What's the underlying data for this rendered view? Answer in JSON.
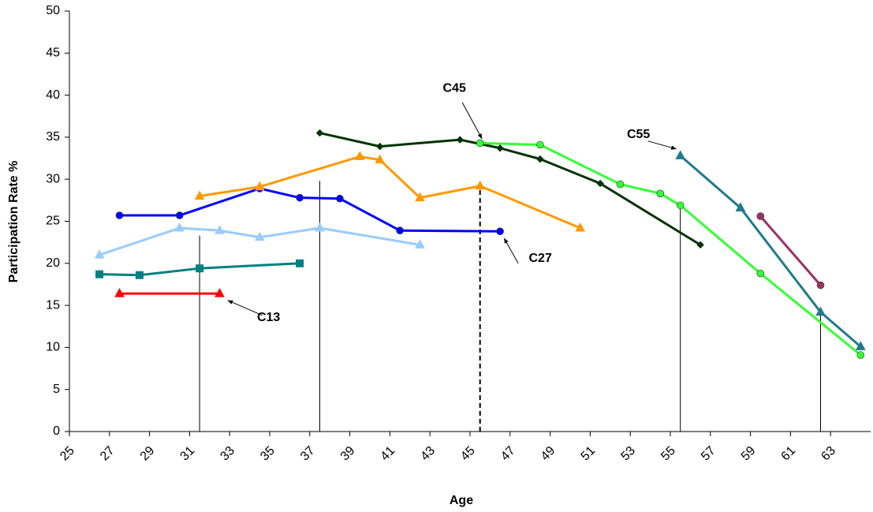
{
  "chart_data": {
    "type": "line",
    "x_label": "Age",
    "y_label": "Participation Rate %",
    "xlim": [
      25,
      65
    ],
    "ylim": [
      0,
      50
    ],
    "xticks": [
      25,
      27,
      29,
      31,
      33,
      35,
      37,
      39,
      41,
      43,
      45,
      47,
      49,
      51,
      53,
      55,
      57,
      59,
      61,
      63
    ],
    "yticks": [
      0,
      5,
      10,
      15,
      20,
      25,
      30,
      35,
      40,
      45,
      50
    ],
    "series": [
      {
        "color": "#ff0000",
        "marker": "triangle",
        "x": [
          27.5,
          32.5
        ],
        "values": [
          16.4,
          16.4
        ]
      },
      {
        "color": "#008080",
        "marker": "square",
        "x": [
          26.5,
          28.5,
          31.5,
          36.5
        ],
        "values": [
          18.7,
          18.6,
          19.4,
          20.0
        ]
      },
      {
        "color": "#99ccff",
        "marker": "triangle",
        "x": [
          26.5,
          30.5,
          32.5,
          34.5,
          37.5,
          42.5
        ],
        "values": [
          21.0,
          24.2,
          23.9,
          23.1,
          24.2,
          22.2
        ]
      },
      {
        "color": "#0000ff",
        "marker": "circle",
        "x": [
          27.5,
          30.5,
          34.5,
          36.5,
          38.5,
          41.5,
          46.5
        ],
        "values": [
          25.7,
          25.7,
          28.9,
          27.8,
          27.7,
          23.9,
          23.8
        ]
      },
      {
        "color": "#ff9900",
        "marker": "triangle",
        "x": [
          31.5,
          34.5,
          39.5,
          40.5,
          42.5,
          45.5,
          50.5
        ],
        "values": [
          28.0,
          29.1,
          32.7,
          32.3,
          27.8,
          29.2,
          24.2
        ]
      },
      {
        "color": "#003300",
        "marker": "diamond",
        "x": [
          37.5,
          40.5,
          44.5,
          46.5,
          48.5,
          51.5,
          56.5
        ],
        "values": [
          35.5,
          33.9,
          34.7,
          33.7,
          32.4,
          29.5,
          22.2
        ]
      },
      {
        "color": "#33ff33",
        "marker": "circle",
        "x": [
          45.5,
          48.5,
          52.5,
          54.5,
          55.5,
          59.5,
          64.5
        ],
        "values": [
          34.3,
          34.1,
          29.4,
          28.3,
          26.9,
          18.8,
          9.1
        ]
      },
      {
        "color": "#1f7a8c",
        "marker": "triangle",
        "x": [
          55.5,
          58.5,
          62.5,
          64.5
        ],
        "values": [
          32.8,
          26.6,
          14.2,
          10.1
        ]
      },
      {
        "color": "#993366",
        "marker": "circle",
        "x": [
          59.5,
          62.5
        ],
        "values": [
          25.6,
          17.4
        ]
      }
    ],
    "vlines": [
      {
        "x": 31.5,
        "y": 23.3,
        "style": "solid"
      },
      {
        "x": 37.5,
        "y": 29.8,
        "style": "solid"
      },
      {
        "x": 45.5,
        "y": 29.2,
        "style": "dashed"
      },
      {
        "x": 55.5,
        "y": 27.0,
        "style": "solid"
      },
      {
        "x": 62.5,
        "y": 14.0,
        "style": "solid"
      }
    ],
    "annotations": [
      {
        "text": "C13",
        "x": 32.9,
        "y": 15.6
      },
      {
        "text": "C27",
        "x": 46.7,
        "y": 23.0
      },
      {
        "text": "C45",
        "x": 45.6,
        "y": 34.8
      },
      {
        "text": "C55",
        "x": 55.3,
        "y": 33.6
      }
    ]
  }
}
